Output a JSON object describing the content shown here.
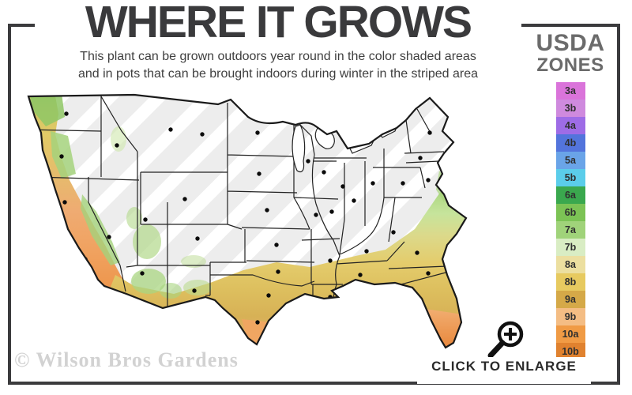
{
  "header": {
    "title": "WHERE IT GROWS",
    "subtitle_line1": "This plant can be grown outdoors year round in the color shaded areas",
    "subtitle_line2": "and in pots that can be brought indoors during winter in the striped area"
  },
  "legend": {
    "heading_line1": "USDA",
    "heading_line2": "ZONES",
    "zones": [
      {
        "label": "3a",
        "color": "#da74da"
      },
      {
        "label": "3b",
        "color": "#cf8ade"
      },
      {
        "label": "4a",
        "color": "#9e6ce6"
      },
      {
        "label": "4b",
        "color": "#5374dc"
      },
      {
        "label": "5a",
        "color": "#6aa4e8"
      },
      {
        "label": "5b",
        "color": "#5bcdea"
      },
      {
        "label": "6a",
        "color": "#3aa84e"
      },
      {
        "label": "6b",
        "color": "#7cc355"
      },
      {
        "label": "7a",
        "color": "#a0d37a"
      },
      {
        "label": "7b",
        "color": "#d9edc4"
      },
      {
        "label": "8a",
        "color": "#ecdfa0"
      },
      {
        "label": "8b",
        "color": "#e7ca60"
      },
      {
        "label": "9a",
        "color": "#d5a948"
      },
      {
        "label": "9b",
        "color": "#f4bd84"
      },
      {
        "label": "10a",
        "color": "#f09b45"
      },
      {
        "label": "10b",
        "color": "#e0822f"
      }
    ]
  },
  "map": {
    "description": "USDA hardiness zone map of the contiguous United States",
    "striped_area_color": "#ededed",
    "outline_color": "#1a1a1a"
  },
  "footer": {
    "watermark": "© Wilson Bros Gardens",
    "enlarge_label": "CLICK TO ENLARGE",
    "enlarge_icon": "magnifier-plus-icon"
  },
  "colors": {
    "frame": "#3b3b3d",
    "title": "#3a3a3c",
    "legend_heading": "#6b6b6b"
  }
}
